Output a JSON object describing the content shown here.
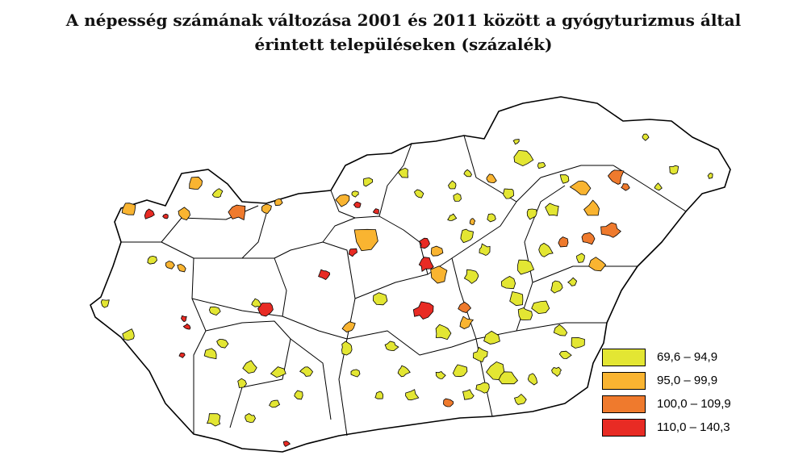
{
  "title": {
    "line1": "A népesség számának változása 2001 és 2011 között a gyógyturizmus által",
    "line2": "érintett településeken (százalék)"
  },
  "colors": {
    "c1": "#e3e633",
    "c2": "#f9b431",
    "c3": "#ef7a2d",
    "c4": "#e82b24"
  },
  "legend": [
    {
      "label": "69,6 –  94,9",
      "color": "#e3e633"
    },
    {
      "label": "95,0 –  99,9",
      "color": "#f9b431"
    },
    {
      "label": "100,0 – 109,9",
      "color": "#ef7a2d"
    },
    {
      "label": "110,0 – 140,3",
      "color": "#e82b24"
    }
  ]
}
